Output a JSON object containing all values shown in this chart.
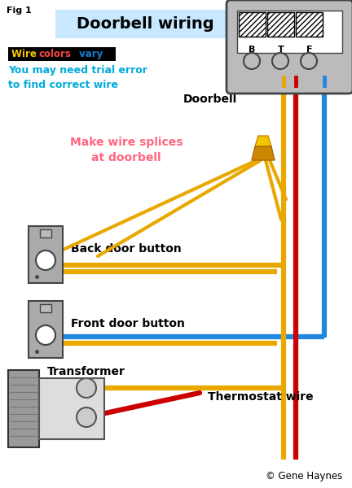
{
  "bg_color": "#ffffff",
  "title": "Doorbell wiring",
  "title_bg": "#c8e8ff",
  "fig_label": "Fig 1",
  "note_text": "You may need trial error\nto find correct wire",
  "note_color": "#00aadd",
  "splice_text": "Make wire splices\nat doorbell",
  "splice_color": "#ff6680",
  "doorbell_label": "Doorbell",
  "back_button_label": "Back door button",
  "front_button_label": "Front door button",
  "transformer_label": "Transformer",
  "thermostat_label": "Thermostat wire",
  "copyright": "© Gene Haynes",
  "yellow": "#e8a800",
  "red": "#cc0000",
  "blue": "#2288dd",
  "dark_gray": "#444444",
  "mid_gray": "#888888",
  "light_gray": "#bbbbbb",
  "plate_gray": "#aaaaaa",
  "wire_lw": 4.5
}
